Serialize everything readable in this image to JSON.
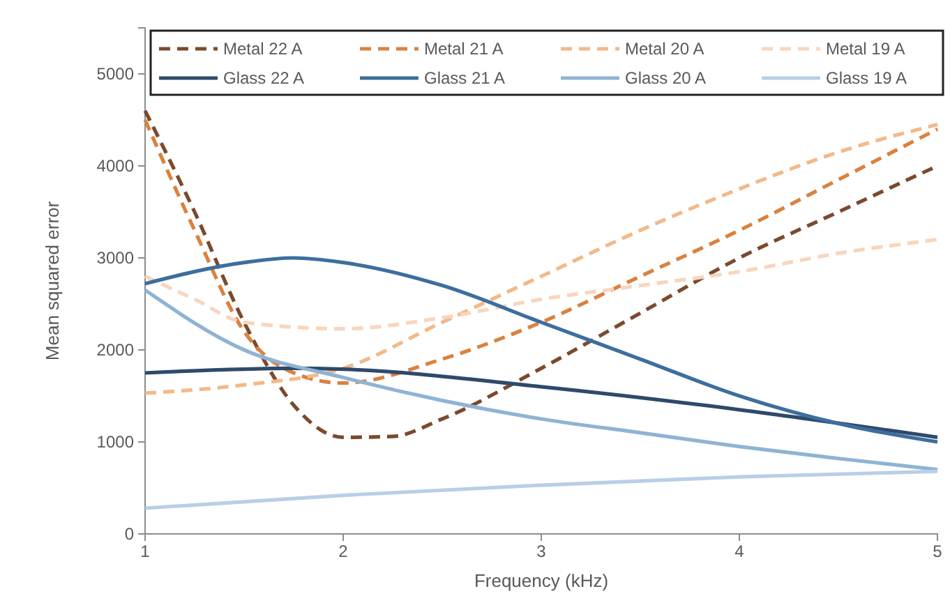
{
  "chart_data": {
    "type": "line",
    "xlabel": "Frequency (kHz)",
    "ylabel": "Mean squared error",
    "xlim": [
      1,
      5
    ],
    "xticks": [
      1,
      2,
      3,
      4,
      5
    ],
    "ylim": [
      0,
      5500
    ],
    "yticks": [
      0,
      1000,
      2000,
      3000,
      4000,
      5000
    ],
    "grid": false,
    "legend": "top",
    "marker": "none",
    "series": [
      {
        "name": "Metal 22 A",
        "color": "#7a4a2e",
        "line_style": "dashed",
        "x": [
          1,
          1.25,
          1.5,
          1.75,
          2,
          2.25,
          2.5,
          3,
          3.5,
          4,
          4.5,
          5
        ],
        "values": [
          4600,
          3500,
          2300,
          1400,
          1050,
          1060,
          1250,
          1800,
          2400,
          3000,
          3500,
          4000
        ]
      },
      {
        "name": "Metal 21 A",
        "color": "#d9823f",
        "line_style": "dashed",
        "x": [
          1,
          1.25,
          1.5,
          1.75,
          2,
          2.5,
          3,
          3.5,
          4,
          4.5,
          5
        ],
        "values": [
          4500,
          3300,
          2200,
          1750,
          1640,
          1900,
          2300,
          2800,
          3300,
          3850,
          4400
        ]
      },
      {
        "name": "Metal 20 A",
        "color": "#f2b98a",
        "line_style": "dashed",
        "x": [
          1,
          1.5,
          2,
          2.5,
          3,
          3.5,
          4,
          4.5,
          5
        ],
        "values": [
          1530,
          1620,
          1800,
          2300,
          2800,
          3300,
          3750,
          4150,
          4450
        ]
      },
      {
        "name": "Metal 19 A",
        "color": "#f8d5bd",
        "line_style": "dashed",
        "x": [
          1,
          1.25,
          1.5,
          2,
          2.5,
          3,
          3.5,
          4,
          4.5,
          5
        ],
        "values": [
          2800,
          2550,
          2300,
          2230,
          2350,
          2550,
          2700,
          2850,
          3050,
          3200
        ]
      },
      {
        "name": "Glass 22 A",
        "color": "#2e4a6b",
        "line_style": "solid",
        "x": [
          1,
          1.75,
          2,
          3,
          4,
          5
        ],
        "values": [
          1750,
          1800,
          1790,
          1600,
          1350,
          1050
        ]
      },
      {
        "name": "Glass 21 A",
        "color": "#3d6e9e",
        "line_style": "solid",
        "x": [
          1,
          1.5,
          1.75,
          2,
          2.5,
          3,
          3.5,
          4,
          4.5,
          5
        ],
        "values": [
          2720,
          2950,
          3000,
          2950,
          2700,
          2300,
          1900,
          1500,
          1200,
          1000
        ]
      },
      {
        "name": "Glass 20 A",
        "color": "#8fb3d4",
        "line_style": "solid",
        "x": [
          1,
          1.5,
          2,
          2.5,
          3,
          3.5,
          4,
          4.5,
          5
        ],
        "values": [
          2650,
          2000,
          1700,
          1450,
          1250,
          1100,
          950,
          820,
          700
        ]
      },
      {
        "name": "Glass 19 A",
        "color": "#b8cfe6",
        "line_style": "solid",
        "x": [
          1,
          2,
          3,
          4,
          5
        ],
        "values": [
          280,
          420,
          530,
          620,
          680
        ]
      }
    ]
  }
}
